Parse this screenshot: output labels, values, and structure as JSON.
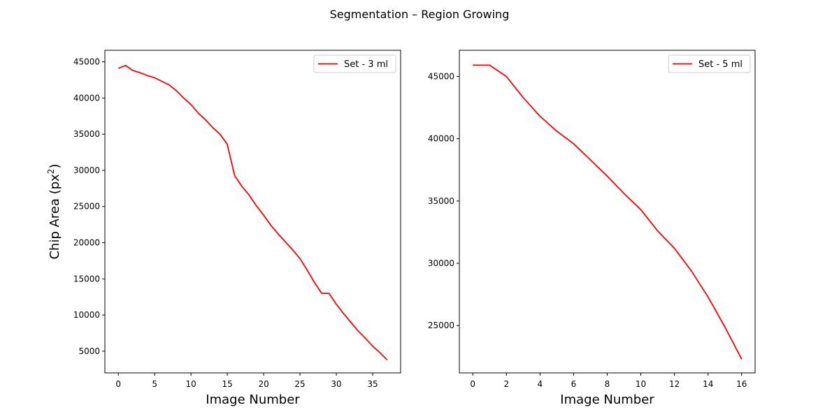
{
  "figure": {
    "suptitle": "Segmentation – Region Growing"
  },
  "chart_data": [
    {
      "type": "line",
      "title": "",
      "xlabel": "Image Number",
      "ylabel": "Chip Area (px",
      "ylabel_sup": "2",
      "ylabel_end": ")",
      "xlim": [
        -1.85,
        38.85
      ],
      "ylim": [
        2000,
        46600
      ],
      "xticks": [
        0,
        5,
        10,
        15,
        20,
        25,
        30,
        35
      ],
      "yticks": [
        5000,
        10000,
        15000,
        20000,
        25000,
        30000,
        35000,
        40000,
        45000
      ],
      "legend_position": "top-right",
      "grid": false,
      "series": [
        {
          "name": "Set - 3 ml",
          "color": "#ff0000",
          "x": [
            0,
            1,
            2,
            3,
            4,
            5,
            6,
            7,
            8,
            9,
            10,
            11,
            12,
            13,
            14,
            15,
            16,
            17,
            18,
            19,
            20,
            21,
            22,
            23,
            24,
            25,
            26,
            27,
            28,
            29,
            30,
            31,
            32,
            33,
            34,
            35,
            36,
            37
          ],
          "y": [
            44100,
            44500,
            43800,
            43500,
            43100,
            42800,
            42300,
            41800,
            41000,
            40000,
            39100,
            37900,
            37000,
            35900,
            35000,
            33600,
            29300,
            27800,
            26600,
            25100,
            23800,
            22400,
            21200,
            20100,
            19000,
            17800,
            16200,
            14500,
            13000,
            13000,
            11500,
            10200,
            9000,
            7800,
            6800,
            5700,
            4800,
            3800
          ]
        }
      ]
    },
    {
      "type": "line",
      "title": "",
      "xlabel": "Image Number",
      "ylabel": "",
      "xlim": [
        -0.8,
        16.8
      ],
      "ylim": [
        21200,
        47100
      ],
      "xticks": [
        0,
        2,
        4,
        6,
        8,
        10,
        12,
        14,
        16
      ],
      "yticks": [
        25000,
        30000,
        35000,
        40000,
        45000
      ],
      "legend_position": "top-right",
      "grid": false,
      "series": [
        {
          "name": "Set - 5 ml",
          "color": "#ff0000",
          "x": [
            0,
            1,
            2,
            3,
            4,
            5,
            6,
            7,
            8,
            9,
            10,
            11,
            12,
            13,
            14,
            15,
            16
          ],
          "y": [
            45900,
            45900,
            45000,
            43300,
            41800,
            40600,
            39600,
            38300,
            37000,
            35600,
            34300,
            32600,
            31200,
            29400,
            27300,
            24900,
            22300
          ]
        }
      ]
    }
  ]
}
